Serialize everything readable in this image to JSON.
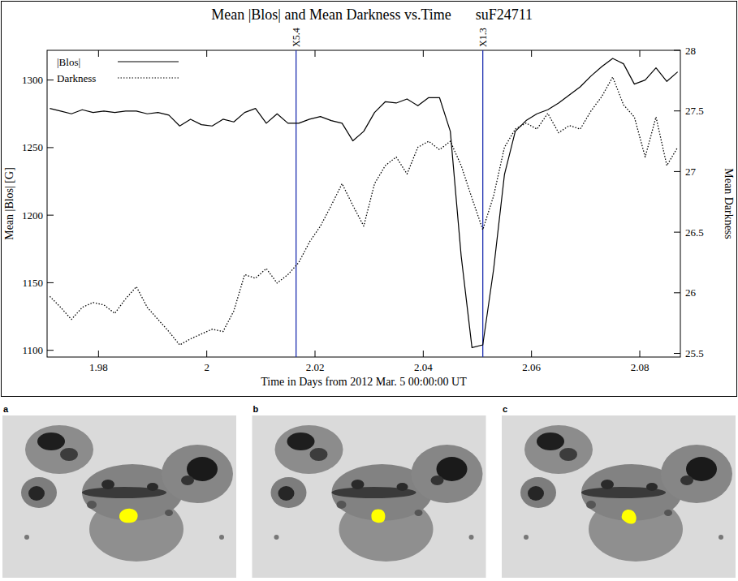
{
  "chart_data": {
    "type": "line",
    "title": "Mean |Blos| and Mean Darkness vs.Time",
    "subtitle": "suF24711",
    "x_label": "Time in Days from 2012 Mar. 5 00:00:00 UT",
    "y_label": "Mean |Blos| [G]",
    "y2_label": "Mean Darkness",
    "x": [
      1.971,
      1.973,
      1.975,
      1.977,
      1.979,
      1.981,
      1.983,
      1.985,
      1.987,
      1.989,
      1.991,
      1.993,
      1.995,
      1.997,
      1.999,
      2.001,
      2.003,
      2.005,
      2.007,
      2.009,
      2.011,
      2.013,
      2.015,
      2.017,
      2.019,
      2.021,
      2.023,
      2.025,
      2.027,
      2.029,
      2.031,
      2.033,
      2.035,
      2.037,
      2.039,
      2.041,
      2.043,
      2.045,
      2.047,
      2.049,
      2.051,
      2.053,
      2.055,
      2.057,
      2.059,
      2.061,
      2.063,
      2.065,
      2.067,
      2.069,
      2.071,
      2.073,
      2.075,
      2.077,
      2.079,
      2.081,
      2.083,
      2.085,
      2.087
    ],
    "series": [
      {
        "name": "|Blos|",
        "color": "#000000",
        "line_style": "solid",
        "values": [
          1279,
          1277,
          1275,
          1278,
          1276,
          1277,
          1276,
          1277,
          1277,
          1275,
          1276,
          1274,
          1266,
          1271,
          1267,
          1266,
          1271,
          1269,
          1276,
          1279,
          1268,
          1275,
          1268,
          1268,
          1271,
          1273,
          1270,
          1268,
          1255,
          1262,
          1276,
          1284,
          1283,
          1286,
          1281,
          1287,
          1287,
          1262,
          1170,
          1102,
          1104,
          1160,
          1230,
          1262,
          1270,
          1275,
          1278,
          1283,
          1289,
          1295,
          1303,
          1310,
          1316,
          1312,
          1297,
          1300,
          1309,
          1299,
          1306
        ]
      },
      {
        "name": "Darkness",
        "color": "#000000",
        "line_style": "dotted",
        "axis": "y2",
        "values": [
          25.97,
          25.88,
          25.78,
          25.88,
          25.92,
          25.9,
          25.83,
          25.95,
          26.05,
          25.88,
          25.78,
          25.68,
          25.57,
          25.62,
          25.66,
          25.7,
          25.68,
          25.85,
          26.15,
          26.12,
          26.2,
          26.08,
          26.15,
          26.25,
          26.42,
          26.55,
          26.72,
          26.9,
          26.72,
          26.55,
          26.9,
          27.05,
          27.12,
          26.98,
          27.2,
          27.25,
          27.18,
          27.25,
          27.05,
          26.78,
          26.52,
          26.8,
          27.2,
          27.35,
          27.4,
          27.35,
          27.48,
          27.32,
          27.38,
          27.35,
          27.5,
          27.62,
          27.78,
          27.55,
          27.45,
          27.12,
          27.45,
          27.05,
          27.2
        ]
      }
    ],
    "annotations": [
      {
        "text": "X5.4",
        "x": 2.0165,
        "color": "#1f2fb0"
      },
      {
        "text": "X1.3",
        "x": 2.051,
        "color": "#1f2fb0"
      }
    ],
    "xlim": [
      1.9705,
      2.0875
    ],
    "xticks": [
      1.98,
      2,
      2.02,
      2.04,
      2.06,
      2.08
    ],
    "ylim": [
      1095,
      1322
    ],
    "yticks": [
      1100,
      1150,
      1200,
      1250,
      1300
    ],
    "y2lim": [
      25.47,
      28.0
    ],
    "y2ticks": [
      25.5,
      26,
      26.5,
      27,
      27.5,
      28
    ],
    "legend": "top-left",
    "grid": false
  },
  "image_panels": [
    {
      "label": "a"
    },
    {
      "label": "b"
    },
    {
      "label": "c"
    }
  ]
}
